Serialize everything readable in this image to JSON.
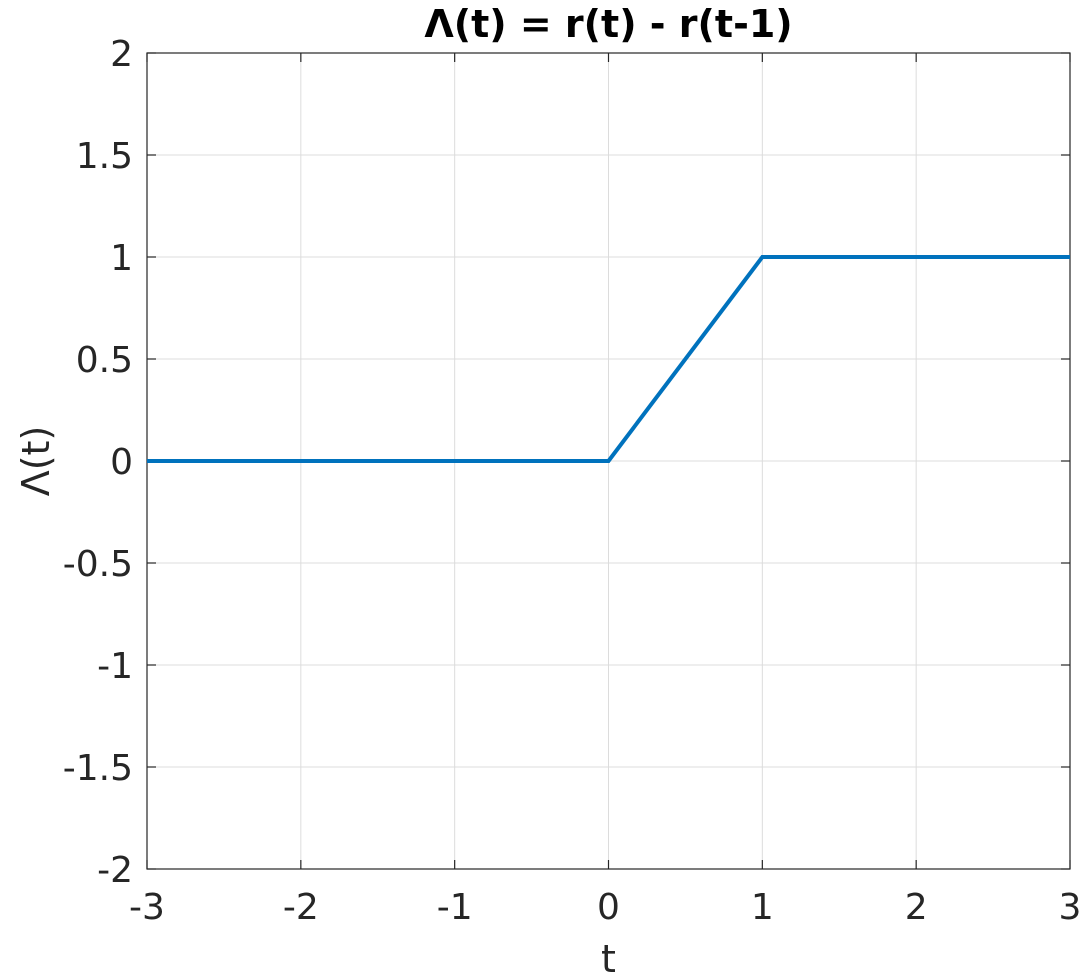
{
  "chart_data": {
    "type": "line",
    "title": "Λ(t) = r(t) - r(t-1)",
    "xlabel": "t",
    "ylabel": "Λ(t)",
    "xlim": [
      -3,
      3
    ],
    "ylim": [
      -2,
      2
    ],
    "grid": true,
    "x_ticks": [
      -3,
      -2,
      -1,
      0,
      1,
      2,
      3
    ],
    "x_tick_labels": [
      "-3",
      "-2",
      "-1",
      "0",
      "1",
      "2",
      "3"
    ],
    "y_ticks": [
      -2,
      -1.5,
      -1,
      -0.5,
      0,
      0.5,
      1,
      1.5,
      2
    ],
    "y_tick_labels": [
      "-2",
      "-1.5",
      "-1",
      "-0.5",
      "0",
      "0.5",
      "1",
      "1.5",
      "2"
    ],
    "series": [
      {
        "color": "#0072bd",
        "x": [
          -3,
          0,
          1,
          3
        ],
        "y": [
          0,
          0,
          1,
          1
        ]
      }
    ]
  }
}
